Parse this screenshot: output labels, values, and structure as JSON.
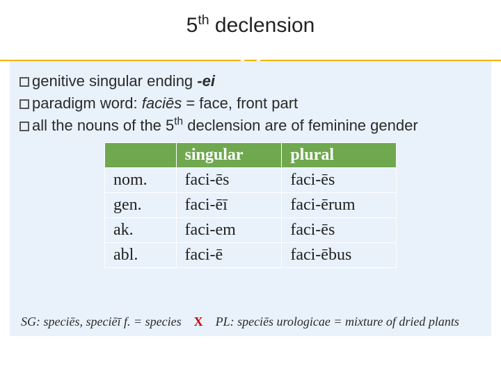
{
  "title_html": "5<sup>th</sup> declension",
  "bullets": [
    {
      "prefix": "genitive singular ending ",
      "bold_italic": "-ei",
      "suffix": ""
    },
    {
      "prefix": "paradigm word: ",
      "italic": "faciēs",
      "suffix": " = face, front part"
    },
    {
      "html": "all the nouns of the 5<sup>th</sup> declension are of feminine gender"
    }
  ],
  "table": {
    "headers": {
      "col1": "",
      "col2": "singular",
      "col3": "plural"
    },
    "rows": [
      {
        "label": "nom.",
        "sg": "faci-ēs",
        "pl": "faci-ēs"
      },
      {
        "label": "gen.",
        "sg": "faci-ēī",
        "pl": "faci-ērum"
      },
      {
        "label": "ak.",
        "sg": "faci-em",
        "pl": "faci-ēs"
      },
      {
        "label": "abl.",
        "sg": "faci-ē",
        "pl": "faci-ēbus"
      }
    ]
  },
  "footer": {
    "left": "SG: speciēs, speciēī f. = species",
    "x": "X",
    "right": "PL: speciēs urologicae = mixture of dried plants"
  },
  "colors": {
    "content_bg": "#e9f1fb",
    "table_header_bg": "#6fa84f",
    "accent_line": "#f2b400",
    "x_color": "#c00000"
  }
}
